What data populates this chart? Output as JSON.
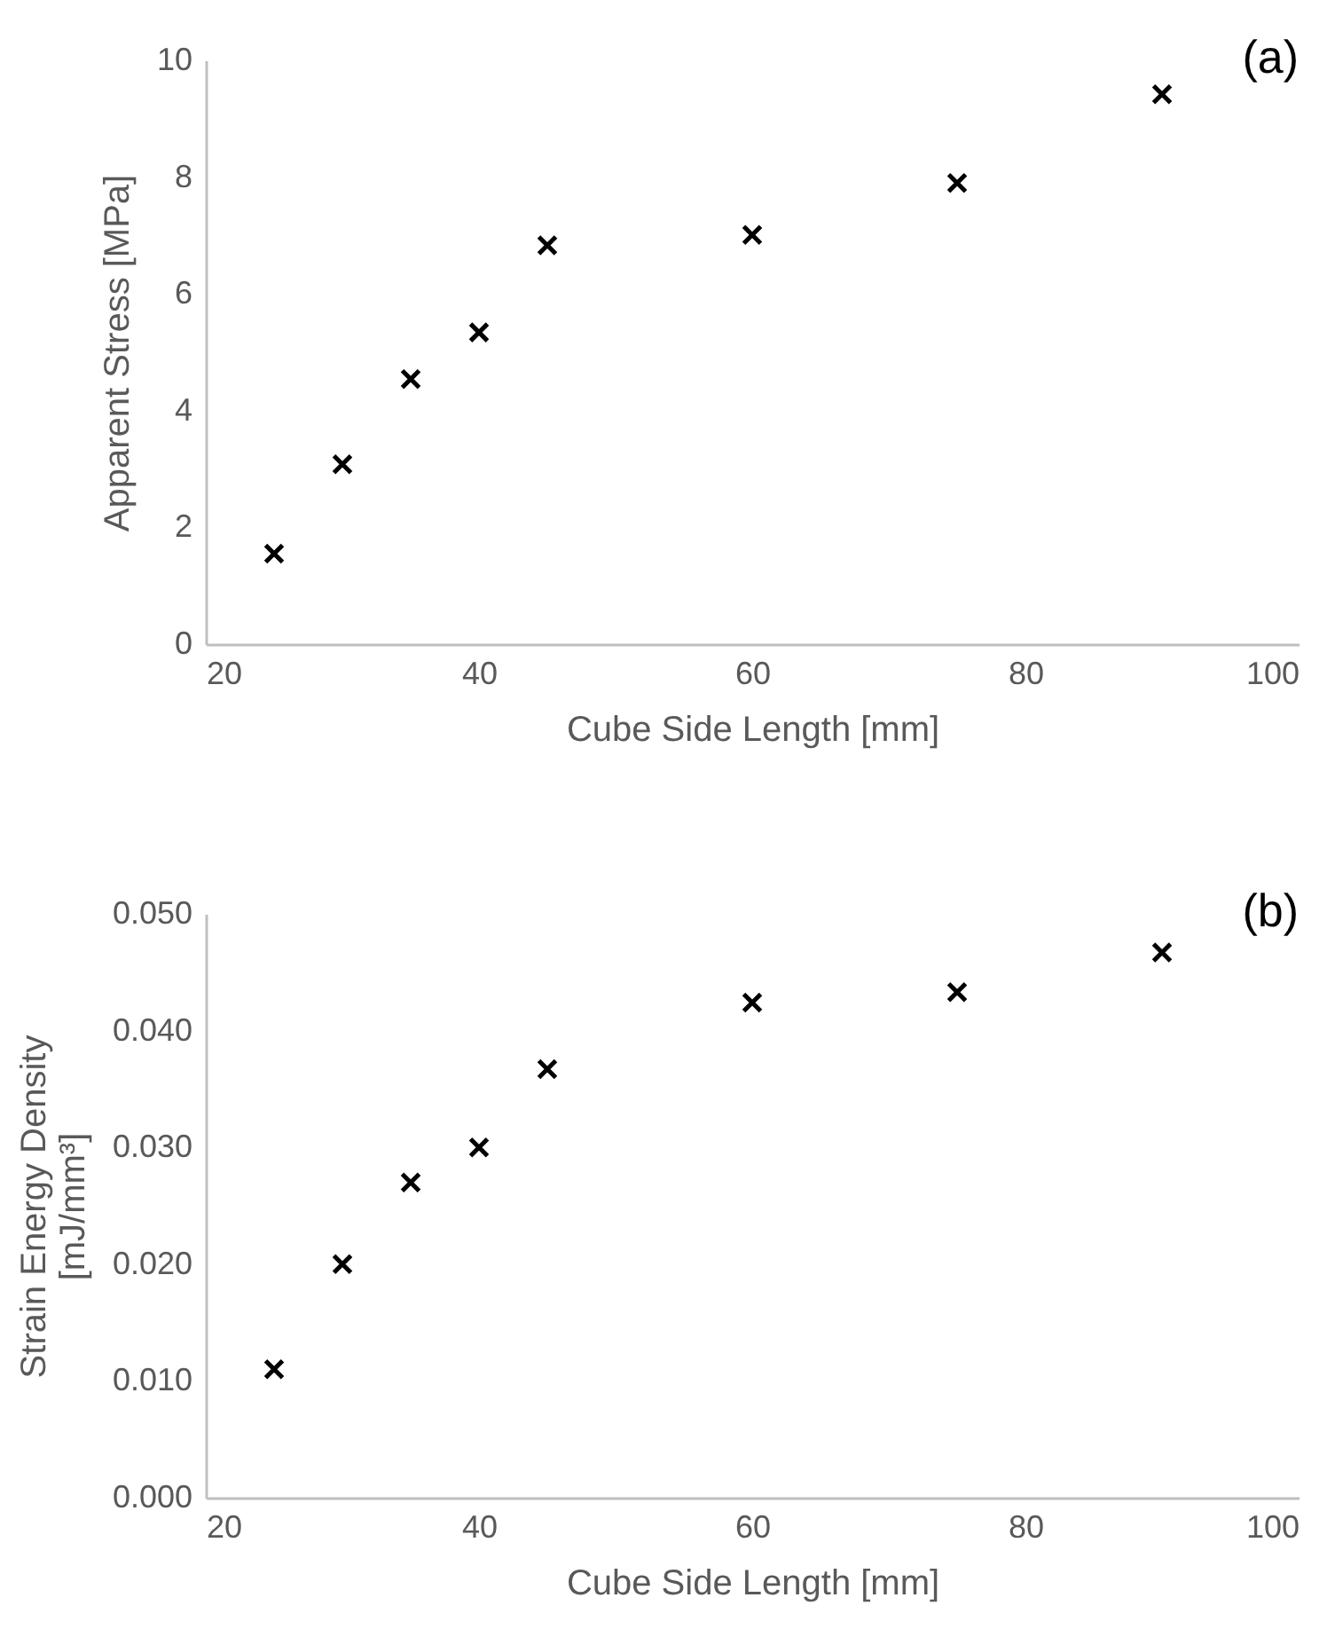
{
  "chart_data": [
    {
      "type": "scatter",
      "x": [
        25,
        30,
        35,
        40,
        45,
        60,
        75,
        90
      ],
      "values": [
        1.55,
        3.08,
        4.54,
        5.34,
        6.83,
        7.01,
        7.9,
        9.42
      ],
      "color": "#000000",
      "marker": "cross",
      "xlabel": "Cube Side Length [mm]",
      "ylabel": "Apparent Stress [MPa]",
      "xlim": [
        20,
        100
      ],
      "xticks": [
        20,
        40,
        60,
        80,
        100
      ],
      "ylim": [
        0,
        10
      ],
      "yticks": [
        0,
        2,
        4,
        6,
        8,
        10
      ],
      "grid": false,
      "annotations": [
        "(a)"
      ]
    },
    {
      "type": "scatter",
      "x": [
        25,
        30,
        35,
        40,
        45,
        60,
        75,
        90
      ],
      "values": [
        0.011,
        0.02,
        0.027,
        0.03,
        0.0367,
        0.0424,
        0.0433,
        0.0467
      ],
      "color": "#000000",
      "marker": "cross",
      "xlabel": "Cube Side Length [mm]",
      "ylabel": "Strain Energy Density\n[mJ/mm³]",
      "xlim": [
        20,
        100
      ],
      "xticks": [
        20,
        40,
        60,
        80,
        100
      ],
      "ylim": [
        0,
        0.05
      ],
      "yticks": [
        {
          "value": 0,
          "label": "0.000"
        },
        {
          "value": 0.01,
          "label": "0.010"
        },
        {
          "value": 0.02,
          "label": "0.020"
        },
        {
          "value": 0.03,
          "label": "0.030"
        },
        {
          "value": 0.04,
          "label": "0.040"
        },
        {
          "value": 0.05,
          "label": "0.050"
        }
      ],
      "grid": false,
      "annotations": [
        "(b)"
      ]
    }
  ]
}
